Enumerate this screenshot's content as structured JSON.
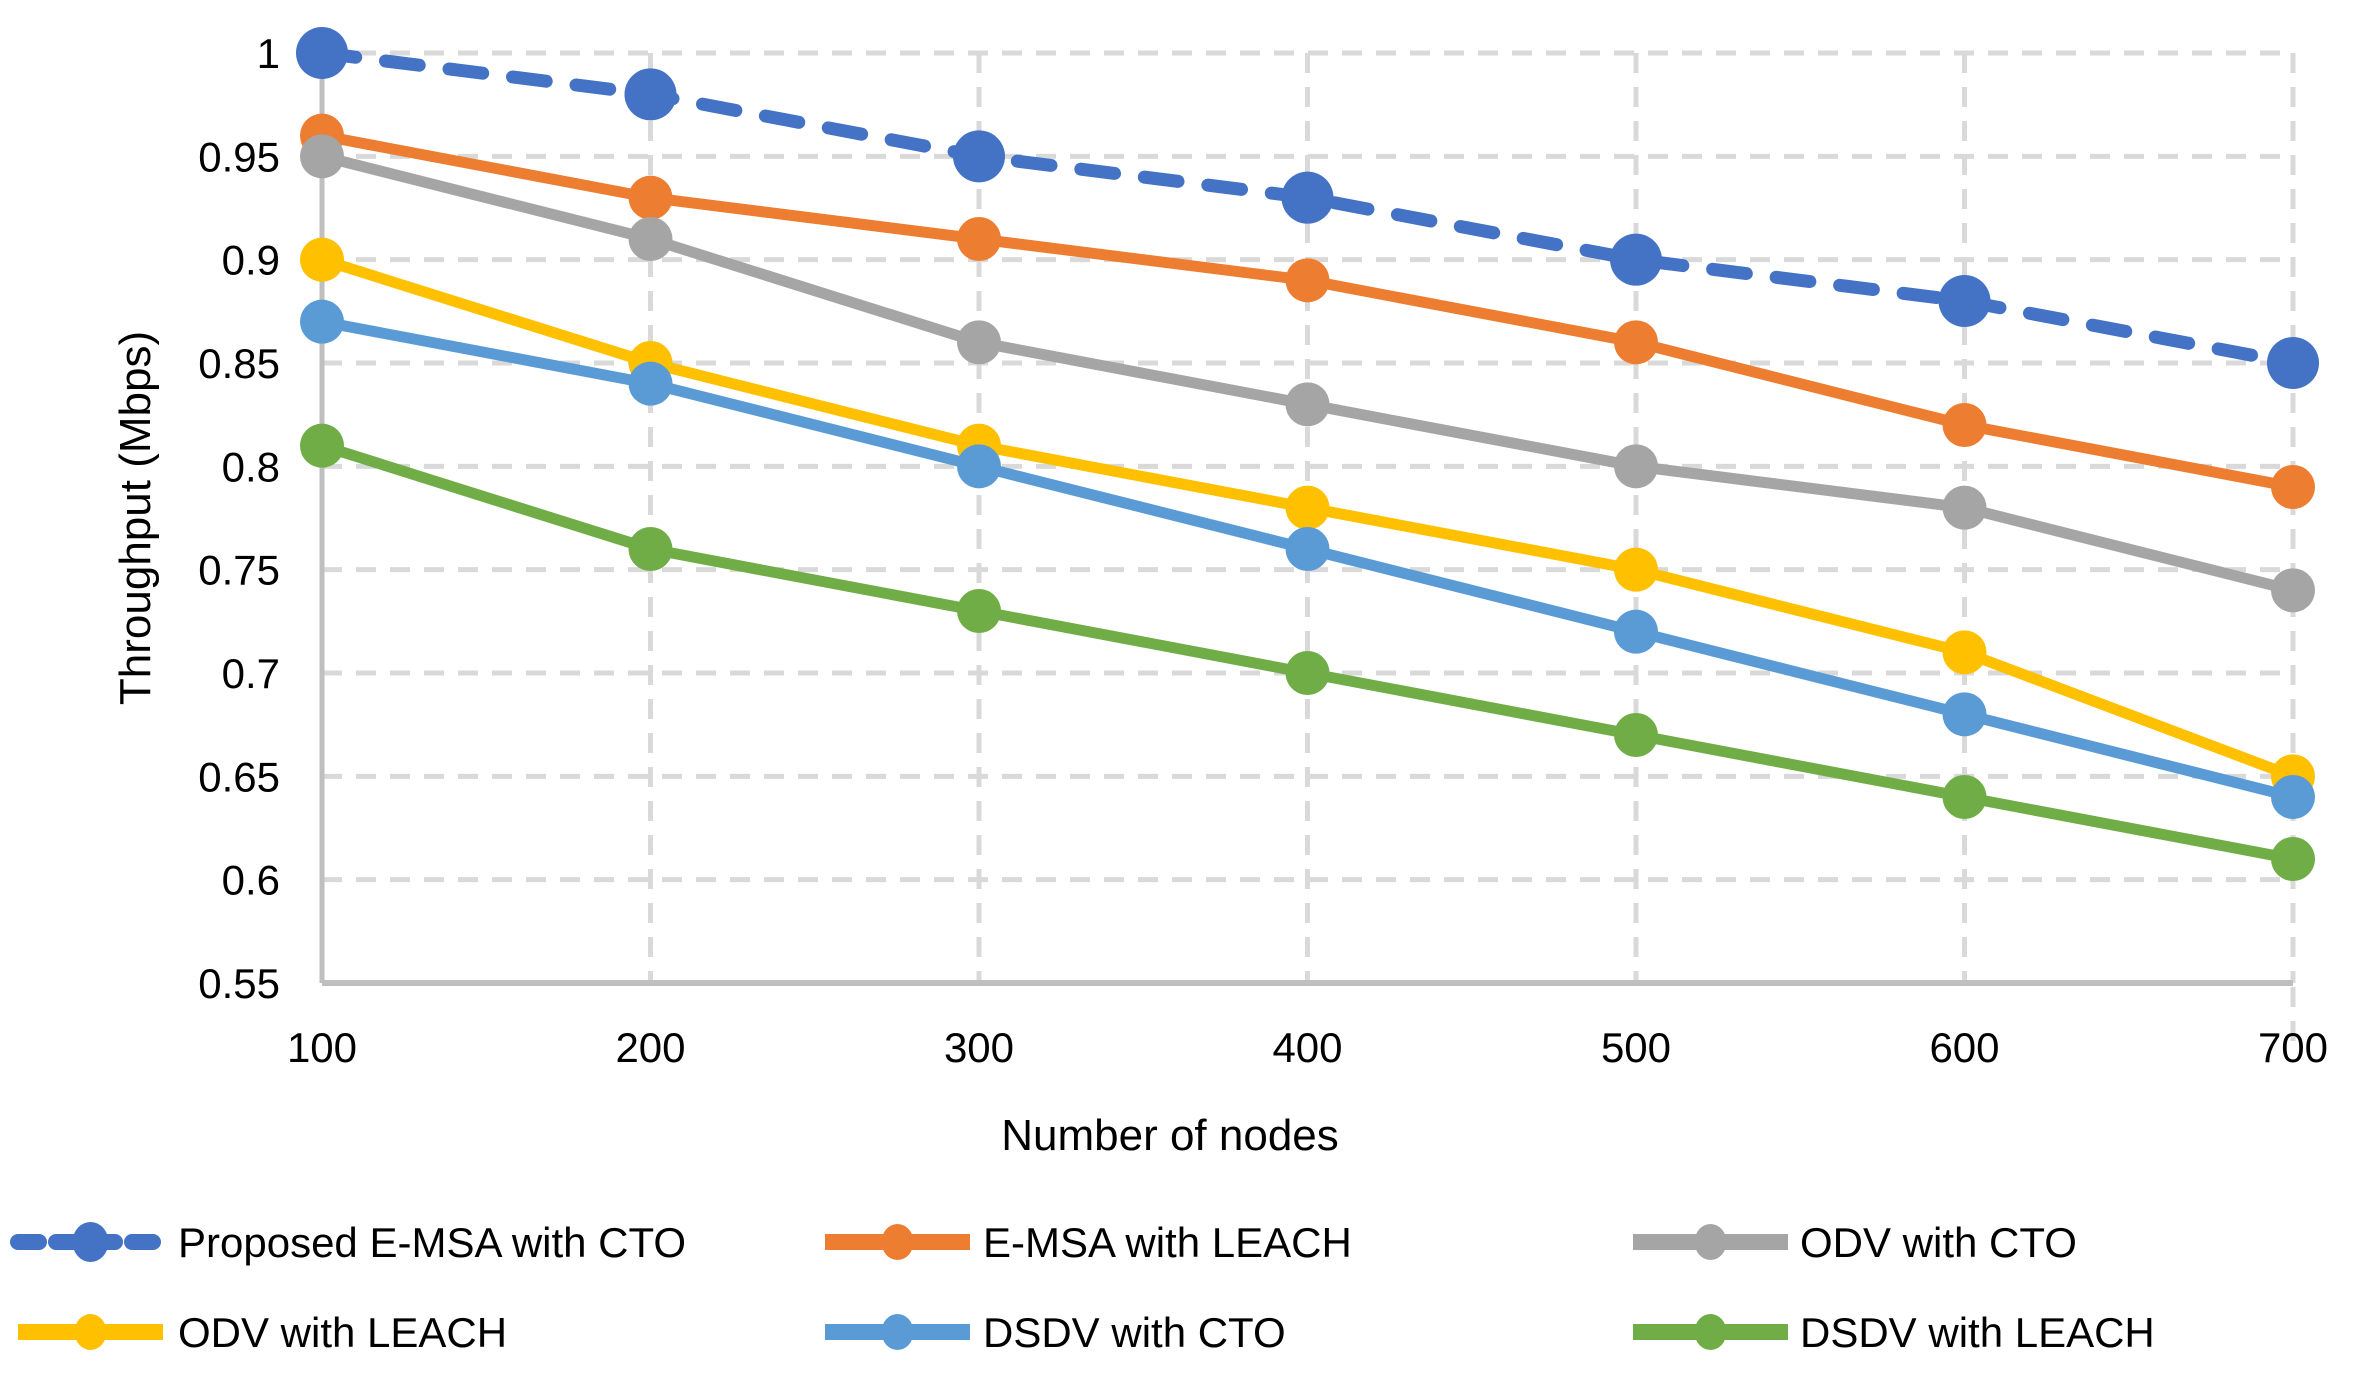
{
  "chart_data": {
    "type": "line",
    "title": "",
    "xlabel": "Number of nodes",
    "ylabel": "Throughput (Mbps)",
    "x": [
      100,
      200,
      300,
      400,
      500,
      600,
      700
    ],
    "x_tick_labels": [
      "100",
      "200",
      "300",
      "400",
      "500",
      "600",
      "700"
    ],
    "ylim": [
      0.55,
      1.0
    ],
    "y_ticks": [
      1,
      0.95,
      0.9,
      0.85,
      0.8,
      0.75,
      0.7,
      0.65,
      0.6,
      0.55
    ],
    "y_tick_labels": [
      "1",
      "0.95",
      "0.9",
      "0.85",
      "0.8",
      "0.75",
      "0.7",
      "0.65",
      "0.6",
      "0.55"
    ],
    "grid": true,
    "legend_position": "bottom",
    "grid_color": "#D9D9D9",
    "axis_color": "#BFBFBF",
    "text_color": "#000000",
    "series": [
      {
        "name": "Proposed E-MSA with CTO",
        "color": "#4472C4",
        "dashed": true,
        "values": [
          1.0,
          0.98,
          0.95,
          0.93,
          0.9,
          0.88,
          0.85
        ]
      },
      {
        "name": "E-MSA with LEACH",
        "color": "#ED7D31",
        "dashed": false,
        "values": [
          0.96,
          0.93,
          0.91,
          0.89,
          0.86,
          0.82,
          0.79
        ]
      },
      {
        "name": "ODV with CTO",
        "color": "#A5A5A5",
        "dashed": false,
        "values": [
          0.95,
          0.91,
          0.86,
          0.83,
          0.8,
          0.78,
          0.74
        ]
      },
      {
        "name": "ODV with LEACH",
        "color": "#FFC000",
        "dashed": false,
        "values": [
          0.9,
          0.85,
          0.81,
          0.78,
          0.75,
          0.71,
          0.65
        ]
      },
      {
        "name": "DSDV with CTO",
        "color": "#5B9BD5",
        "dashed": false,
        "values": [
          0.87,
          0.84,
          0.8,
          0.76,
          0.72,
          0.68,
          0.64
        ]
      },
      {
        "name": "DSDV with LEACH",
        "color": "#70AD47",
        "dashed": false,
        "values": [
          0.81,
          0.76,
          0.73,
          0.7,
          0.67,
          0.64,
          0.61
        ]
      }
    ]
  }
}
